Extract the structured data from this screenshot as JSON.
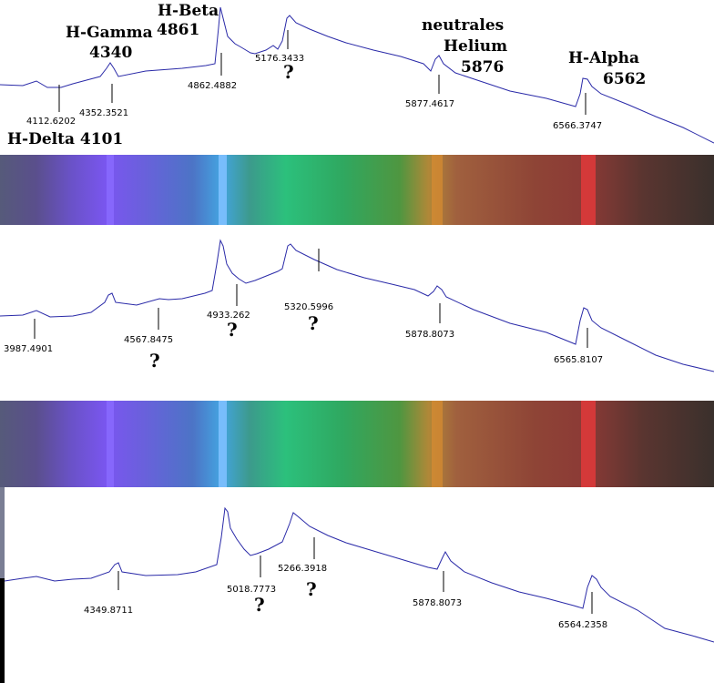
{
  "chart_data": [
    {
      "type": "line",
      "lines": [
        {
          "label": "H-Beta",
          "num": "4861"
        },
        {
          "label": "H-Gamma",
          "num": "4340"
        },
        {
          "label": "H-Delta 4101",
          "num": ""
        },
        {
          "label": "neutrales",
          "num": ""
        },
        {
          "label": "Helium",
          "num": "5876"
        },
        {
          "label": "H-Alpha",
          "num": "6562"
        }
      ],
      "markers": [
        {
          "x": 4112.6202,
          "label": "4112.6202",
          "q": false
        },
        {
          "x": 4352.3521,
          "label": "4352.3521",
          "q": false
        },
        {
          "x": 4862.4882,
          "label": "4862.4882",
          "q": false
        },
        {
          "x": 5176.3433,
          "label": "5176.3433",
          "q": true
        },
        {
          "x": 5877.4617,
          "label": "5877.4617",
          "q": false
        },
        {
          "x": 6566.3747,
          "label": "6566.3747",
          "q": false
        }
      ]
    },
    {
      "type": "line",
      "markers": [
        {
          "x": 3987.4901,
          "label": "3987.4901",
          "q": false
        },
        {
          "x": 4567.8475,
          "label": "4567.8475",
          "q": true
        },
        {
          "x": 4933.262,
          "label": "4933.262",
          "q": true
        },
        {
          "x": 5320.5996,
          "label": "5320.5996",
          "q": true
        },
        {
          "x": 5878.8073,
          "label": "5878.8073",
          "q": false
        },
        {
          "x": 6565.8107,
          "label": "6565.8107",
          "q": false
        }
      ]
    },
    {
      "type": "line",
      "markers": [
        {
          "x": 4349.8711,
          "label": "4349.8711",
          "q": false
        },
        {
          "x": 5018.7773,
          "label": "5018.7773",
          "q": true
        },
        {
          "x": 5266.3918,
          "label": "5266.3918",
          "q": true
        },
        {
          "x": 5878.8073,
          "label": "5878.8073",
          "q": false
        },
        {
          "x": 6564.2358,
          "label": "6564.2358",
          "q": false
        }
      ]
    }
  ],
  "question_mark": "?",
  "colors": {
    "trace": "#2a2aa8",
    "background": "#ffffff"
  }
}
